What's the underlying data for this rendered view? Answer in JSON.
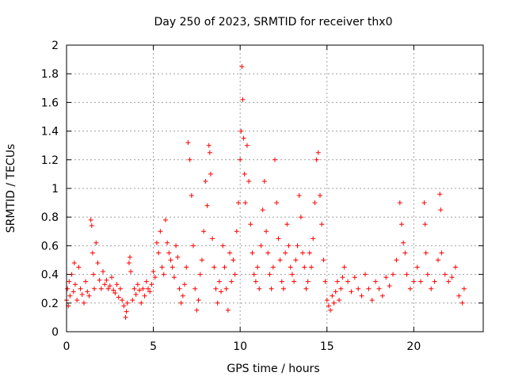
{
  "chart_data": {
    "type": "scatter",
    "title": "Day 250 of 2023, SRMTID for receiver thx0",
    "xlabel": "GPS time / hours",
    "ylabel": "SRMTID / TECUs",
    "xlim": [
      0,
      24
    ],
    "ylim": [
      0,
      2
    ],
    "grid": true,
    "marker": "+",
    "color": "#ff0000",
    "x_ticks": [
      0,
      5,
      10,
      15,
      20
    ],
    "x_tick_labels": [
      "0",
      "5",
      "10",
      "15",
      "20"
    ],
    "y_ticks": [
      0,
      0.2,
      0.4,
      0.6,
      0.8,
      1,
      1.2,
      1.4,
      1.6,
      1.8,
      2
    ],
    "y_tick_labels": [
      "0",
      "0.2",
      "0.4",
      "0.6",
      "0.8",
      "1",
      "1.2",
      "1.4",
      "1.6",
      "1.8",
      "2"
    ],
    "series": [
      {
        "name": "SRMTID",
        "points": [
          [
            0.0,
            0.22
          ],
          [
            0.05,
            0.3
          ],
          [
            0.1,
            0.18
          ],
          [
            0.15,
            0.35
          ],
          [
            0.2,
            0.25
          ],
          [
            0.3,
            0.4
          ],
          [
            0.4,
            0.28
          ],
          [
            0.45,
            0.48
          ],
          [
            0.5,
            0.33
          ],
          [
            0.6,
            0.22
          ],
          [
            0.7,
            0.45
          ],
          [
            0.8,
            0.3
          ],
          [
            0.9,
            0.26
          ],
          [
            1.0,
            0.2
          ],
          [
            1.1,
            0.35
          ],
          [
            1.2,
            0.28
          ],
          [
            1.3,
            0.25
          ],
          [
            1.4,
            0.78
          ],
          [
            1.45,
            0.74
          ],
          [
            1.5,
            0.55
          ],
          [
            1.55,
            0.4
          ],
          [
            1.6,
            0.3
          ],
          [
            1.7,
            0.62
          ],
          [
            1.8,
            0.48
          ],
          [
            1.9,
            0.36
          ],
          [
            2.0,
            0.3
          ],
          [
            2.1,
            0.42
          ],
          [
            2.2,
            0.33
          ],
          [
            2.3,
            0.36
          ],
          [
            2.4,
            0.3
          ],
          [
            2.5,
            0.32
          ],
          [
            2.6,
            0.38
          ],
          [
            2.7,
            0.29
          ],
          [
            2.8,
            0.27
          ],
          [
            2.9,
            0.33
          ],
          [
            3.0,
            0.24
          ],
          [
            3.1,
            0.3
          ],
          [
            3.2,
            0.22
          ],
          [
            3.3,
            0.18
          ],
          [
            3.4,
            0.1
          ],
          [
            3.45,
            0.14
          ],
          [
            3.5,
            0.2
          ],
          [
            3.6,
            0.48
          ],
          [
            3.65,
            0.52
          ],
          [
            3.7,
            0.42
          ],
          [
            3.8,
            0.22
          ],
          [
            3.9,
            0.3
          ],
          [
            4.0,
            0.26
          ],
          [
            4.1,
            0.33
          ],
          [
            4.2,
            0.29
          ],
          [
            4.3,
            0.2
          ],
          [
            4.4,
            0.3
          ],
          [
            4.5,
            0.25
          ],
          [
            4.6,
            0.35
          ],
          [
            4.7,
            0.3
          ],
          [
            4.8,
            0.28
          ],
          [
            4.9,
            0.33
          ],
          [
            5.0,
            0.42
          ],
          [
            5.1,
            0.38
          ],
          [
            5.2,
            0.62
          ],
          [
            5.3,
            0.55
          ],
          [
            5.4,
            0.7
          ],
          [
            5.5,
            0.45
          ],
          [
            5.6,
            0.4
          ],
          [
            5.7,
            0.78
          ],
          [
            5.8,
            0.62
          ],
          [
            5.9,
            0.55
          ],
          [
            6.0,
            0.5
          ],
          [
            6.1,
            0.45
          ],
          [
            6.2,
            0.38
          ],
          [
            6.3,
            0.6
          ],
          [
            6.4,
            0.52
          ],
          [
            6.5,
            0.3
          ],
          [
            6.6,
            0.2
          ],
          [
            6.7,
            0.25
          ],
          [
            6.8,
            0.33
          ],
          [
            6.9,
            0.45
          ],
          [
            7.0,
            1.32
          ],
          [
            7.1,
            1.2
          ],
          [
            7.2,
            0.95
          ],
          [
            7.3,
            0.6
          ],
          [
            7.4,
            0.3
          ],
          [
            7.5,
            0.15
          ],
          [
            7.6,
            0.22
          ],
          [
            7.7,
            0.4
          ],
          [
            7.8,
            0.5
          ],
          [
            7.9,
            0.7
          ],
          [
            8.0,
            1.05
          ],
          [
            8.1,
            0.88
          ],
          [
            8.2,
            1.3
          ],
          [
            8.25,
            1.25
          ],
          [
            8.3,
            1.1
          ],
          [
            8.4,
            0.65
          ],
          [
            8.5,
            0.45
          ],
          [
            8.6,
            0.3
          ],
          [
            8.7,
            0.2
          ],
          [
            8.8,
            0.35
          ],
          [
            8.9,
            0.28
          ],
          [
            9.0,
            0.6
          ],
          [
            9.1,
            0.45
          ],
          [
            9.2,
            0.3
          ],
          [
            9.3,
            0.15
          ],
          [
            9.4,
            0.55
          ],
          [
            9.5,
            0.35
          ],
          [
            9.6,
            0.5
          ],
          [
            9.7,
            0.4
          ],
          [
            9.8,
            0.7
          ],
          [
            9.9,
            0.9
          ],
          [
            10.0,
            1.2
          ],
          [
            10.05,
            1.4
          ],
          [
            10.1,
            1.85
          ],
          [
            10.15,
            1.62
          ],
          [
            10.2,
            1.35
          ],
          [
            10.25,
            1.1
          ],
          [
            10.3,
            0.9
          ],
          [
            10.4,
            1.3
          ],
          [
            10.5,
            1.05
          ],
          [
            10.6,
            0.75
          ],
          [
            10.7,
            0.55
          ],
          [
            10.8,
            0.4
          ],
          [
            10.9,
            0.35
          ],
          [
            11.0,
            0.45
          ],
          [
            11.1,
            0.3
          ],
          [
            11.2,
            0.6
          ],
          [
            11.3,
            0.85
          ],
          [
            11.4,
            1.05
          ],
          [
            11.5,
            0.7
          ],
          [
            11.6,
            0.55
          ],
          [
            11.7,
            0.4
          ],
          [
            11.8,
            0.3
          ],
          [
            11.9,
            0.45
          ],
          [
            12.0,
            1.2
          ],
          [
            12.1,
            0.9
          ],
          [
            12.2,
            0.65
          ],
          [
            12.3,
            0.5
          ],
          [
            12.4,
            0.35
          ],
          [
            12.5,
            0.3
          ],
          [
            12.6,
            0.55
          ],
          [
            12.7,
            0.75
          ],
          [
            12.8,
            0.6
          ],
          [
            12.9,
            0.45
          ],
          [
            13.0,
            0.4
          ],
          [
            13.1,
            0.35
          ],
          [
            13.2,
            0.5
          ],
          [
            13.3,
            0.6
          ],
          [
            13.4,
            0.95
          ],
          [
            13.5,
            0.8
          ],
          [
            13.6,
            0.55
          ],
          [
            13.7,
            0.45
          ],
          [
            13.8,
            0.3
          ],
          [
            13.9,
            0.35
          ],
          [
            14.0,
            0.55
          ],
          [
            14.1,
            0.45
          ],
          [
            14.2,
            0.65
          ],
          [
            14.3,
            0.9
          ],
          [
            14.4,
            1.2
          ],
          [
            14.5,
            1.25
          ],
          [
            14.6,
            0.95
          ],
          [
            14.7,
            0.75
          ],
          [
            14.8,
            0.5
          ],
          [
            14.9,
            0.35
          ],
          [
            15.0,
            0.22
          ],
          [
            15.1,
            0.18
          ],
          [
            15.2,
            0.15
          ],
          [
            15.3,
            0.25
          ],
          [
            15.4,
            0.2
          ],
          [
            15.5,
            0.28
          ],
          [
            15.6,
            0.35
          ],
          [
            15.7,
            0.22
          ],
          [
            15.8,
            0.3
          ],
          [
            15.9,
            0.38
          ],
          [
            16.0,
            0.45
          ],
          [
            16.2,
            0.35
          ],
          [
            16.4,
            0.28
          ],
          [
            16.6,
            0.38
          ],
          [
            16.8,
            0.3
          ],
          [
            17.0,
            0.25
          ],
          [
            17.2,
            0.4
          ],
          [
            17.4,
            0.3
          ],
          [
            17.6,
            0.22
          ],
          [
            17.8,
            0.35
          ],
          [
            18.0,
            0.3
          ],
          [
            18.2,
            0.25
          ],
          [
            18.4,
            0.38
          ],
          [
            18.6,
            0.32
          ],
          [
            18.8,
            0.4
          ],
          [
            19.0,
            0.5
          ],
          [
            19.2,
            0.9
          ],
          [
            19.3,
            0.75
          ],
          [
            19.4,
            0.62
          ],
          [
            19.5,
            0.55
          ],
          [
            19.6,
            0.4
          ],
          [
            19.8,
            0.3
          ],
          [
            20.0,
            0.35
          ],
          [
            20.2,
            0.45
          ],
          [
            20.4,
            0.35
          ],
          [
            20.6,
            0.9
          ],
          [
            20.65,
            0.75
          ],
          [
            20.7,
            0.55
          ],
          [
            20.8,
            0.4
          ],
          [
            21.0,
            0.3
          ],
          [
            21.2,
            0.35
          ],
          [
            21.4,
            0.5
          ],
          [
            21.5,
            0.96
          ],
          [
            21.55,
            0.85
          ],
          [
            21.6,
            0.55
          ],
          [
            21.8,
            0.4
          ],
          [
            22.0,
            0.35
          ],
          [
            22.2,
            0.38
          ],
          [
            22.4,
            0.45
          ],
          [
            22.6,
            0.25
          ],
          [
            22.8,
            0.2
          ],
          [
            22.9,
            0.3
          ]
        ]
      }
    ]
  }
}
